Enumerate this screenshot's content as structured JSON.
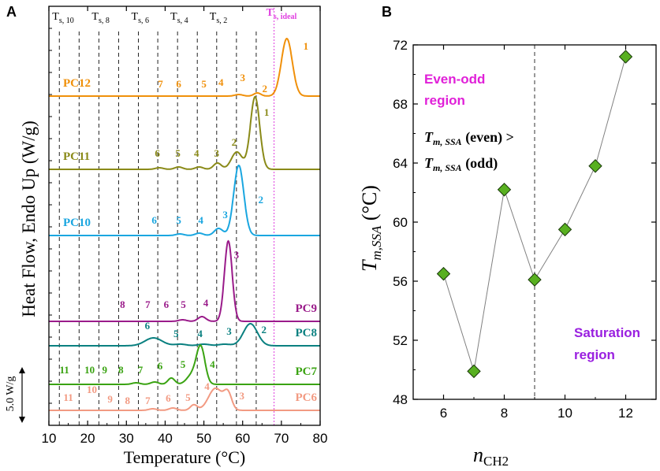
{
  "panel_a": {
    "letter": "A",
    "ylabel": "Heat Flow, Endo Up (W/g)",
    "scale_bar_label": "5.0 W/g",
    "chart_data": {
      "type": "line",
      "title": "",
      "xlabel": "Temperature (°C)",
      "ylabel": "Heat Flow, Endo Up (W/g)",
      "xlim": [
        10,
        80
      ],
      "xticks": [
        10,
        20,
        30,
        40,
        50,
        60,
        70,
        80
      ],
      "stage_lines": [
        {
          "label": "T",
          "sub": "s, 10",
          "x": 12.7
        },
        {
          "label": "",
          "sub": "",
          "x": 17.8
        },
        {
          "label": "T",
          "sub": "s, 8",
          "x": 22.9
        },
        {
          "label": "",
          "sub": "",
          "x": 28.0
        },
        {
          "label": "T",
          "sub": "s, 6",
          "x": 33.1
        },
        {
          "label": "",
          "sub": "",
          "x": 38.1
        },
        {
          "label": "T",
          "sub": "s, 4",
          "x": 43.2
        },
        {
          "label": "",
          "sub": "",
          "x": 48.3
        },
        {
          "label": "T",
          "sub": "s, 2",
          "x": 53.3
        },
        {
          "label": "",
          "sub": "",
          "x": 58.4
        },
        {
          "label": "",
          "sub": "",
          "x": 63.5
        }
      ],
      "ideal_line": {
        "label": "T",
        "sub": "s, ideal",
        "x": 68.1,
        "color": "#e040e0"
      },
      "series": [
        {
          "name": "PC12",
          "color": "#f0900a",
          "baseline": 122,
          "label_pos": "left",
          "peaks": [
            {
              "x": 71.4,
              "h": 73,
              "w": 1.4
            },
            {
              "x": 63.8,
              "h": 4,
              "w": 0.9
            },
            {
              "x": 59.0,
              "h": 2,
              "w": 1
            }
          ],
          "annotations": [
            [
              "1",
              76.3,
              63
            ],
            [
              "2",
              65.7,
              117
            ],
            [
              "3",
              60.0,
              103
            ],
            [
              "4",
              54.4,
              109
            ],
            [
              "5",
              50.0,
              111
            ],
            [
              "6",
              43.5,
              111
            ],
            [
              "7",
              38.8,
              111
            ]
          ]
        },
        {
          "name": "PC11",
          "color": "#8a8a18",
          "baseline": 215,
          "label_pos": "left",
          "peaks": [
            {
              "x": 63.2,
              "h": 92,
              "w": 1.2
            },
            {
              "x": 58.5,
              "h": 22,
              "w": 1.4
            },
            {
              "x": 53.5,
              "h": 8,
              "w": 1.0
            },
            {
              "x": 48.8,
              "h": 3,
              "w": 1
            },
            {
              "x": 43.5,
              "h": 3,
              "w": 1
            },
            {
              "x": 38.5,
              "h": 2,
              "w": 1
            }
          ],
          "annotations": [
            [
              "1",
              66.2,
              147
            ],
            [
              "2",
              57.8,
              185
            ],
            [
              "3",
              53.3,
              199
            ],
            [
              "4",
              48.1,
              199
            ],
            [
              "5",
              43.3,
              199
            ],
            [
              "6",
              38.0,
              199
            ]
          ]
        },
        {
          "name": "PC10",
          "color": "#1aa6e0",
          "baseline": 299,
          "label_pos": "left",
          "peaks": [
            {
              "x": 59.0,
              "h": 89,
              "w": 1.3
            },
            {
              "x": 53.8,
              "h": 9,
              "w": 1.1
            },
            {
              "x": 48.8,
              "h": 3,
              "w": 1
            },
            {
              "x": 43.8,
              "h": 2,
              "w": 1
            }
          ],
          "annotations": [
            [
              "2",
              64.7,
              258
            ],
            [
              "3",
              55.5,
              277
            ],
            [
              "4",
              49.2,
              284
            ],
            [
              "5",
              43.5,
              284
            ],
            [
              "6",
              37.2,
              284
            ]
          ]
        },
        {
          "name": "PC9",
          "color": "#9a1b8a",
          "baseline": 408,
          "label_pos": "right",
          "peaks": [
            {
              "x": 56.3,
              "h": 102,
              "w": 1.0
            },
            {
              "x": 49.5,
              "h": 6,
              "w": 1
            },
            {
              "x": 44.5,
              "h": 2,
              "w": 1
            }
          ],
          "annotations": [
            [
              "3",
              58.4,
              328
            ],
            [
              "4",
              50.5,
              389
            ],
            [
              "5",
              44.7,
              391
            ],
            [
              "6",
              40.3,
              391
            ],
            [
              "7",
              35.5,
              391
            ],
            [
              "8",
              29.0,
              391
            ]
          ]
        },
        {
          "name": "PC8",
          "color": "#0a8080",
          "baseline": 439,
          "label_pos": "right",
          "peaks": [
            {
              "x": 62.0,
              "h": 28,
              "w": 1.8
            },
            {
              "x": 37.0,
              "h": 10,
              "w": 2.2
            },
            {
              "x": 44,
              "h": 2,
              "w": 1.5
            },
            {
              "x": 50,
              "h": 2,
              "w": 1.5
            },
            {
              "x": 55.3,
              "h": 2,
              "w": 1.5
            }
          ],
          "annotations": [
            [
              "2",
              65.5,
              423
            ],
            [
              "3",
              56.5,
              425
            ],
            [
              "4",
              49.0,
              428
            ],
            [
              "5",
              42.8,
              428
            ],
            [
              "6",
              35.4,
              418
            ]
          ]
        },
        {
          "name": "PC7",
          "color": "#3aa312",
          "baseline": 488,
          "label_pos": "right",
          "peaks": [
            {
              "x": 49.2,
              "h": 46,
              "w": 1.1
            },
            {
              "x": 47.0,
              "h": 12,
              "w": 1.4
            },
            {
              "x": 41.6,
              "h": 8,
              "w": 0.9
            },
            {
              "x": 37.3,
              "h": 3,
              "w": 1
            },
            {
              "x": 32.5,
              "h": 2,
              "w": 1
            }
          ],
          "annotations": [
            [
              "4",
              52.2,
              467
            ],
            [
              "5",
              44.6,
              467
            ],
            [
              "6",
              38.7,
              469
            ],
            [
              "7",
              33.6,
              474
            ],
            [
              "8",
              28.6,
              474
            ],
            [
              "9",
              24.4,
              474
            ],
            [
              "10",
              20.5,
              474
            ],
            [
              "11",
              14.0,
              474
            ]
          ]
        },
        {
          "name": "PC6",
          "color": "#f29a82",
          "baseline": 521,
          "label_pos": "right",
          "peaks": [
            {
              "x": 53.0,
              "h": 28,
              "w": 1.8
            },
            {
              "x": 56.2,
              "h": 20,
              "w": 1.0
            },
            {
              "x": 47.4,
              "h": 7,
              "w": 0.9
            },
            {
              "x": 42.0,
              "h": 3,
              "w": 1
            },
            {
              "x": 36.8,
              "h": 2,
              "w": 1
            }
          ],
          "annotations": [
            [
              "3",
              59.8,
              507
            ],
            [
              "4",
              50.8,
              495
            ],
            [
              "5",
              45.9,
              509
            ],
            [
              "6",
              40.8,
              510
            ],
            [
              "7",
              35.5,
              513
            ],
            [
              "8",
              30.3,
              513
            ],
            [
              "9",
              25.8,
              511
            ],
            [
              "10",
              21.1,
              499
            ],
            [
              "11",
              15.0,
              509
            ]
          ]
        }
      ]
    }
  },
  "panel_b": {
    "letter": "B",
    "ylabel_main": "T",
    "ylabel_sub": "m,SSA",
    "ylabel_unit": " (°C)",
    "xlabel_main": "n",
    "xlabel_sub": "CH2",
    "even_odd_line1": "Even-odd",
    "even_odd_line2": "region",
    "rel_line1_main": "T",
    "rel_line1_sub": "m, SSA",
    "rel_line1_rest": " (even) >",
    "rel_line2_main": "T",
    "rel_line2_sub": "m, SSA",
    "rel_line2_rest": " (odd)",
    "saturation_line1": "Saturation",
    "saturation_line2": "region",
    "colors": {
      "even_odd": "#e020d8",
      "saturation": "#9a20e0",
      "marker": "#58b020",
      "line": "#808080"
    },
    "chart_data": {
      "type": "scatter",
      "title": "",
      "xlabel": "nCH2",
      "ylabel": "Tm,SSA (°C)",
      "xlim": [
        5,
        13
      ],
      "ylim": [
        48,
        72
      ],
      "xticks": [
        6,
        8,
        10,
        12
      ],
      "yticks": [
        48,
        52,
        56,
        60,
        64,
        68,
        72
      ],
      "divider_x": 9,
      "x": [
        6,
        7,
        8,
        9,
        10,
        11,
        12
      ],
      "y": [
        56.5,
        49.9,
        62.2,
        56.1,
        59.5,
        63.8,
        71.2
      ]
    }
  }
}
